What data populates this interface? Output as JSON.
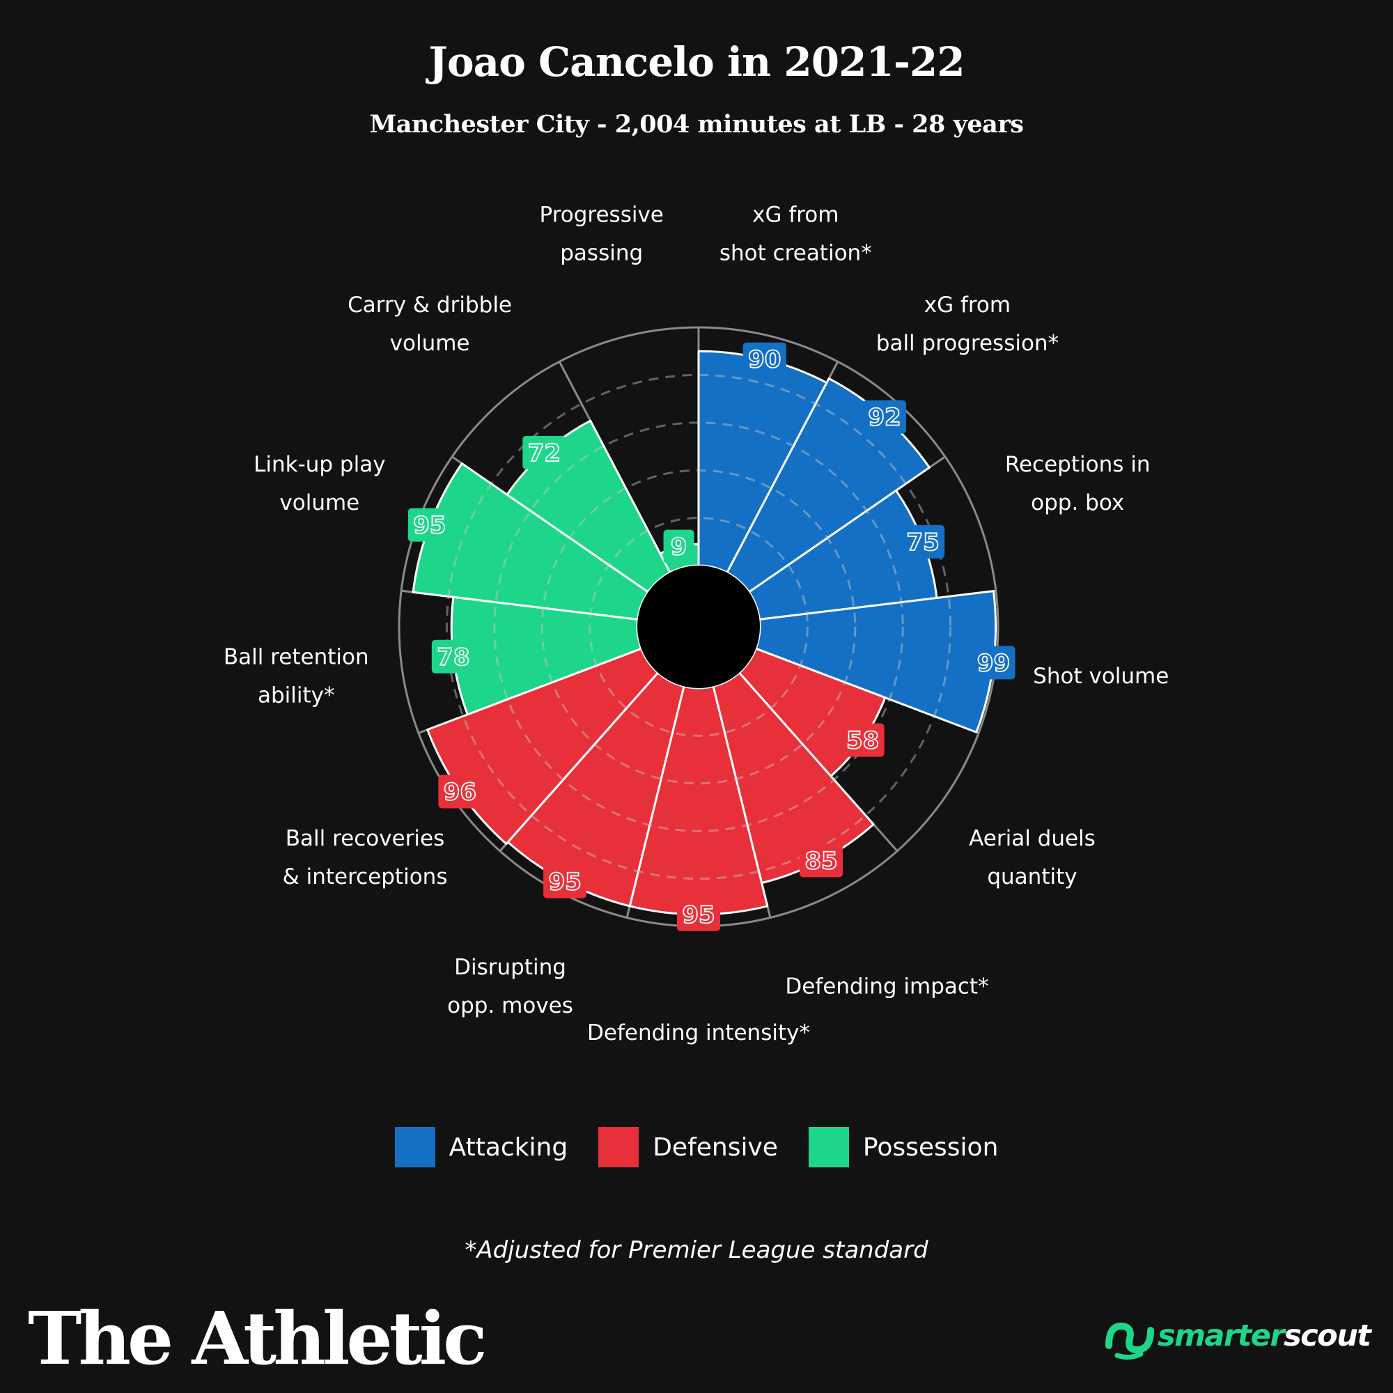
{
  "title": "Joao Cancelo in 2021-22",
  "subtitle": "Manchester City - 2,004 minutes at LB - 28 years",
  "footnote": "*Adjusted for Premier League standard",
  "brand": "The Athletic",
  "partner": {
    "part1": "smarter",
    "part2": "scout"
  },
  "colors": {
    "Attacking": "#1470c4",
    "Defensive": "#e8303a",
    "Possession": "#1ed68a",
    "background": "#121212"
  },
  "legend": [
    {
      "label": "Attacking",
      "color": "#1470c4"
    },
    {
      "label": "Defensive",
      "color": "#e8303a"
    },
    {
      "label": "Possession",
      "color": "#1ed68a"
    }
  ],
  "chart_data": {
    "type": "radial-bar",
    "ylim": [
      0,
      100
    ],
    "grid": true,
    "legend_position": "bottom",
    "categories": [
      {
        "label": [
          "xG from",
          "shot creation*"
        ],
        "value": 90,
        "group": "Attacking"
      },
      {
        "label": [
          "xG from",
          "ball progression*"
        ],
        "value": 92,
        "group": "Attacking"
      },
      {
        "label": [
          "Receptions in",
          "opp. box"
        ],
        "value": 75,
        "group": "Attacking"
      },
      {
        "label": [
          "Shot volume"
        ],
        "value": 99,
        "group": "Attacking"
      },
      {
        "label": [
          "Aerial duels",
          "quantity"
        ],
        "value": 58,
        "group": "Defensive"
      },
      {
        "label": [
          "Defending impact*"
        ],
        "value": 85,
        "group": "Defensive"
      },
      {
        "label": [
          "Defending intensity*"
        ],
        "value": 95,
        "group": "Defensive"
      },
      {
        "label": [
          "Disrupting",
          "opp. moves"
        ],
        "value": 95,
        "group": "Defensive"
      },
      {
        "label": [
          "Ball recoveries",
          "& interceptions"
        ],
        "value": 96,
        "group": "Defensive"
      },
      {
        "label": [
          "Ball retention",
          "ability*"
        ],
        "value": 78,
        "group": "Possession"
      },
      {
        "label": [
          "Link-up play",
          "volume"
        ],
        "value": 95,
        "group": "Possession"
      },
      {
        "label": [
          "Carry & dribble",
          "volume"
        ],
        "value": 72,
        "group": "Possession"
      },
      {
        "label": [
          "Progressive",
          "passing"
        ],
        "value": 9,
        "group": "Possession"
      }
    ]
  }
}
